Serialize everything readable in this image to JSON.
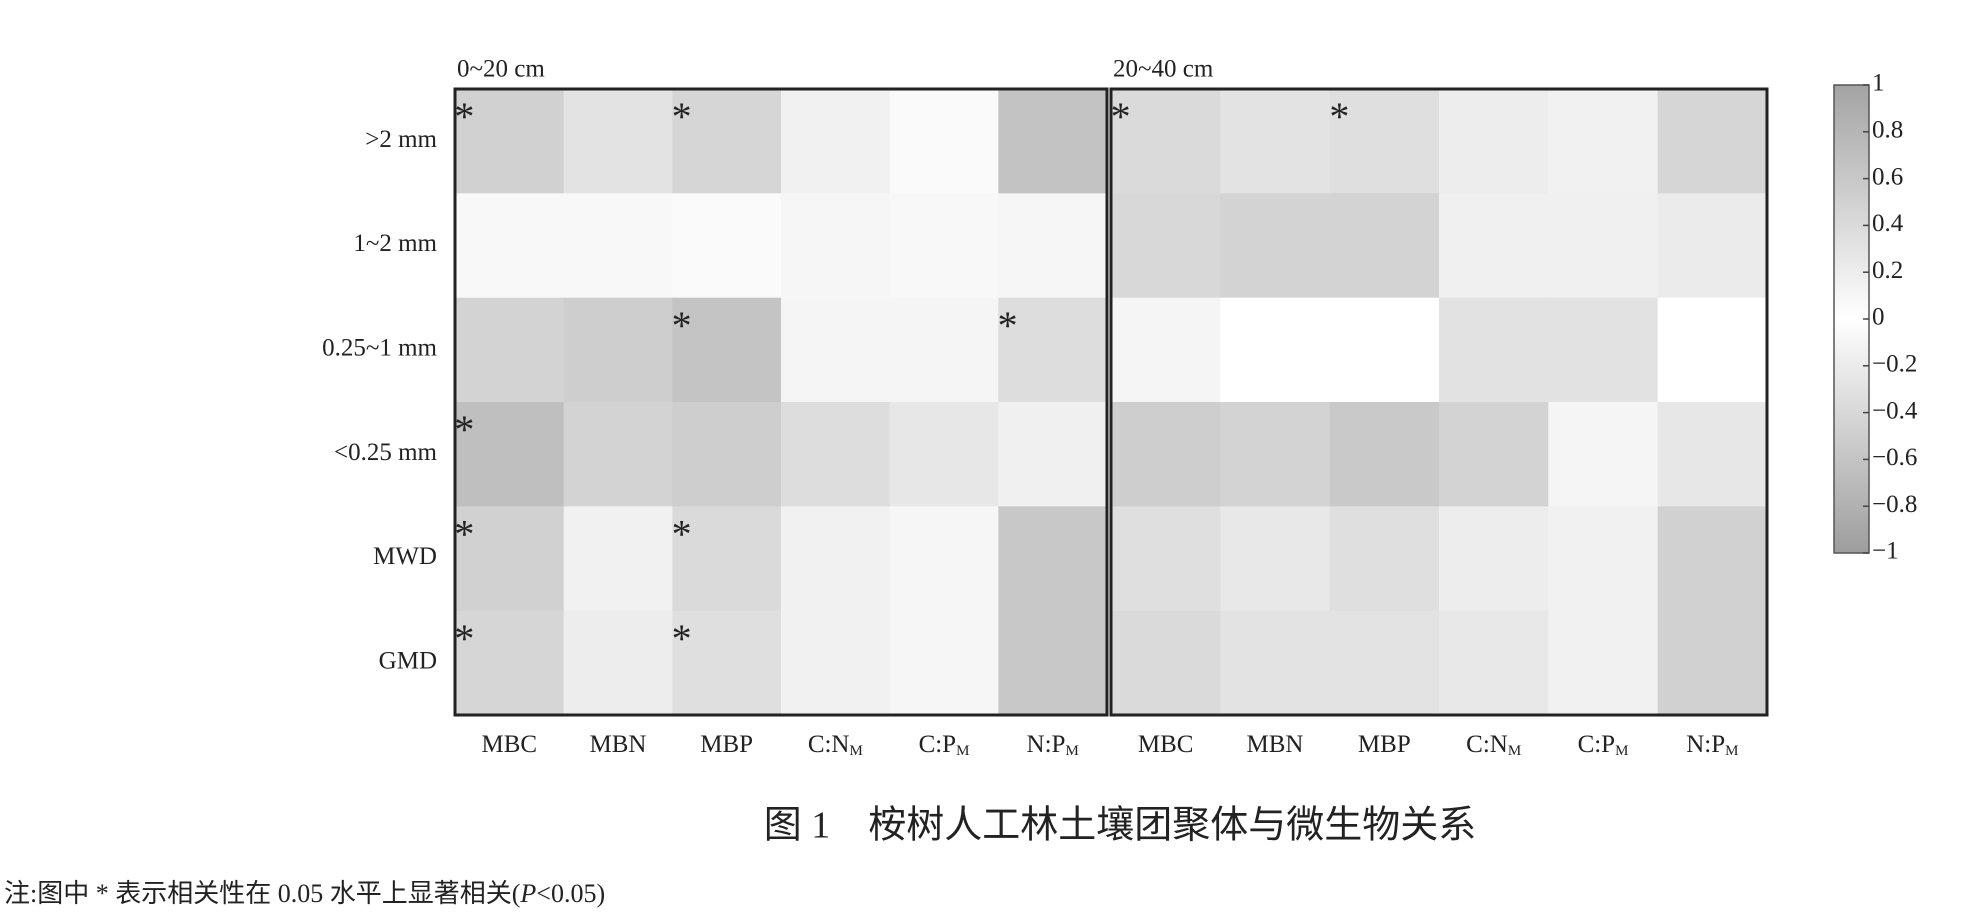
{
  "chart_data": [
    {
      "type": "heatmap",
      "title": "0~20 cm",
      "x": [
        "MBC",
        "MBN",
        "MBP",
        "C:N",
        "C:P",
        "N:P"
      ],
      "x_subscripts": [
        null,
        null,
        null,
        "M",
        "M",
        "M"
      ],
      "y": [
        ">2 mm",
        "1~2 mm",
        "0.25~1 mm",
        "<0.25 mm",
        "MWD",
        "GMD"
      ],
      "values": [
        [
          0.5,
          0.3,
          0.45,
          0.15,
          0.05,
          0.65
        ],
        [
          0.08,
          0.08,
          0.05,
          0.1,
          0.08,
          0.1
        ],
        [
          -0.45,
          -0.5,
          -0.6,
          -0.1,
          -0.1,
          -0.35
        ],
        [
          -0.65,
          -0.45,
          -0.5,
          -0.35,
          -0.25,
          -0.15
        ],
        [
          0.5,
          0.15,
          0.4,
          0.15,
          0.1,
          0.6
        ],
        [
          0.45,
          0.2,
          0.35,
          0.15,
          0.1,
          0.6
        ]
      ],
      "significance": [
        [
          "*",
          null,
          "*",
          null,
          null,
          null
        ],
        [
          null,
          null,
          null,
          null,
          null,
          null
        ],
        [
          null,
          null,
          "*",
          null,
          null,
          "*"
        ],
        [
          "*",
          null,
          null,
          null,
          null,
          null
        ],
        [
          "*",
          null,
          "*",
          null,
          null,
          null
        ],
        [
          "*",
          null,
          "*",
          null,
          null,
          null
        ]
      ],
      "zlim": [
        -1,
        1
      ],
      "zticks": [
        1,
        0.8,
        0.6,
        0.4,
        0.2,
        0,
        {
          "value": -0.2,
          "label": "−0.2"
        },
        {
          "value": -0.4,
          "label": "−0.4"
        },
        {
          "value": -0.6,
          "label": "−0.6"
        },
        {
          "value": -0.8,
          "label": "−0.8"
        },
        {
          "value": -1,
          "label": "−1"
        }
      ]
    },
    {
      "type": "heatmap",
      "title": "20~40 cm",
      "x": [
        "MBC",
        "MBN",
        "MBP",
        "C:N",
        "C:P",
        "N:P"
      ],
      "x_subscripts": [
        null,
        null,
        null,
        "M",
        "M",
        "M"
      ],
      "values": [
        [
          0.4,
          0.3,
          0.35,
          0.2,
          0.15,
          0.45
        ],
        [
          -0.4,
          -0.45,
          -0.45,
          -0.15,
          -0.15,
          -0.2
        ],
        [
          -0.1,
          0,
          0,
          -0.3,
          -0.3,
          0
        ],
        [
          -0.5,
          -0.45,
          -0.55,
          -0.45,
          -0.1,
          -0.25
        ],
        [
          0.35,
          0.25,
          0.35,
          0.2,
          0.15,
          0.5
        ],
        [
          0.4,
          0.3,
          0.3,
          0.25,
          0.15,
          0.5
        ]
      ],
      "significance": [
        [
          "*",
          null,
          "*",
          null,
          null,
          null
        ],
        [
          null,
          null,
          null,
          null,
          null,
          null
        ],
        [
          null,
          null,
          null,
          null,
          null,
          null
        ],
        [
          null,
          null,
          null,
          null,
          null,
          null
        ],
        [
          null,
          null,
          null,
          null,
          null,
          null
        ],
        [
          null,
          null,
          null,
          null,
          null,
          null
        ]
      ]
    }
  ],
  "caption": "图 1　桉树人工林土壤团聚体与微生物关系",
  "note": [
    "注:图中 * 表示相关性在 0.05 水平上显著相关(",
    "P",
    "<0.05)"
  ]
}
